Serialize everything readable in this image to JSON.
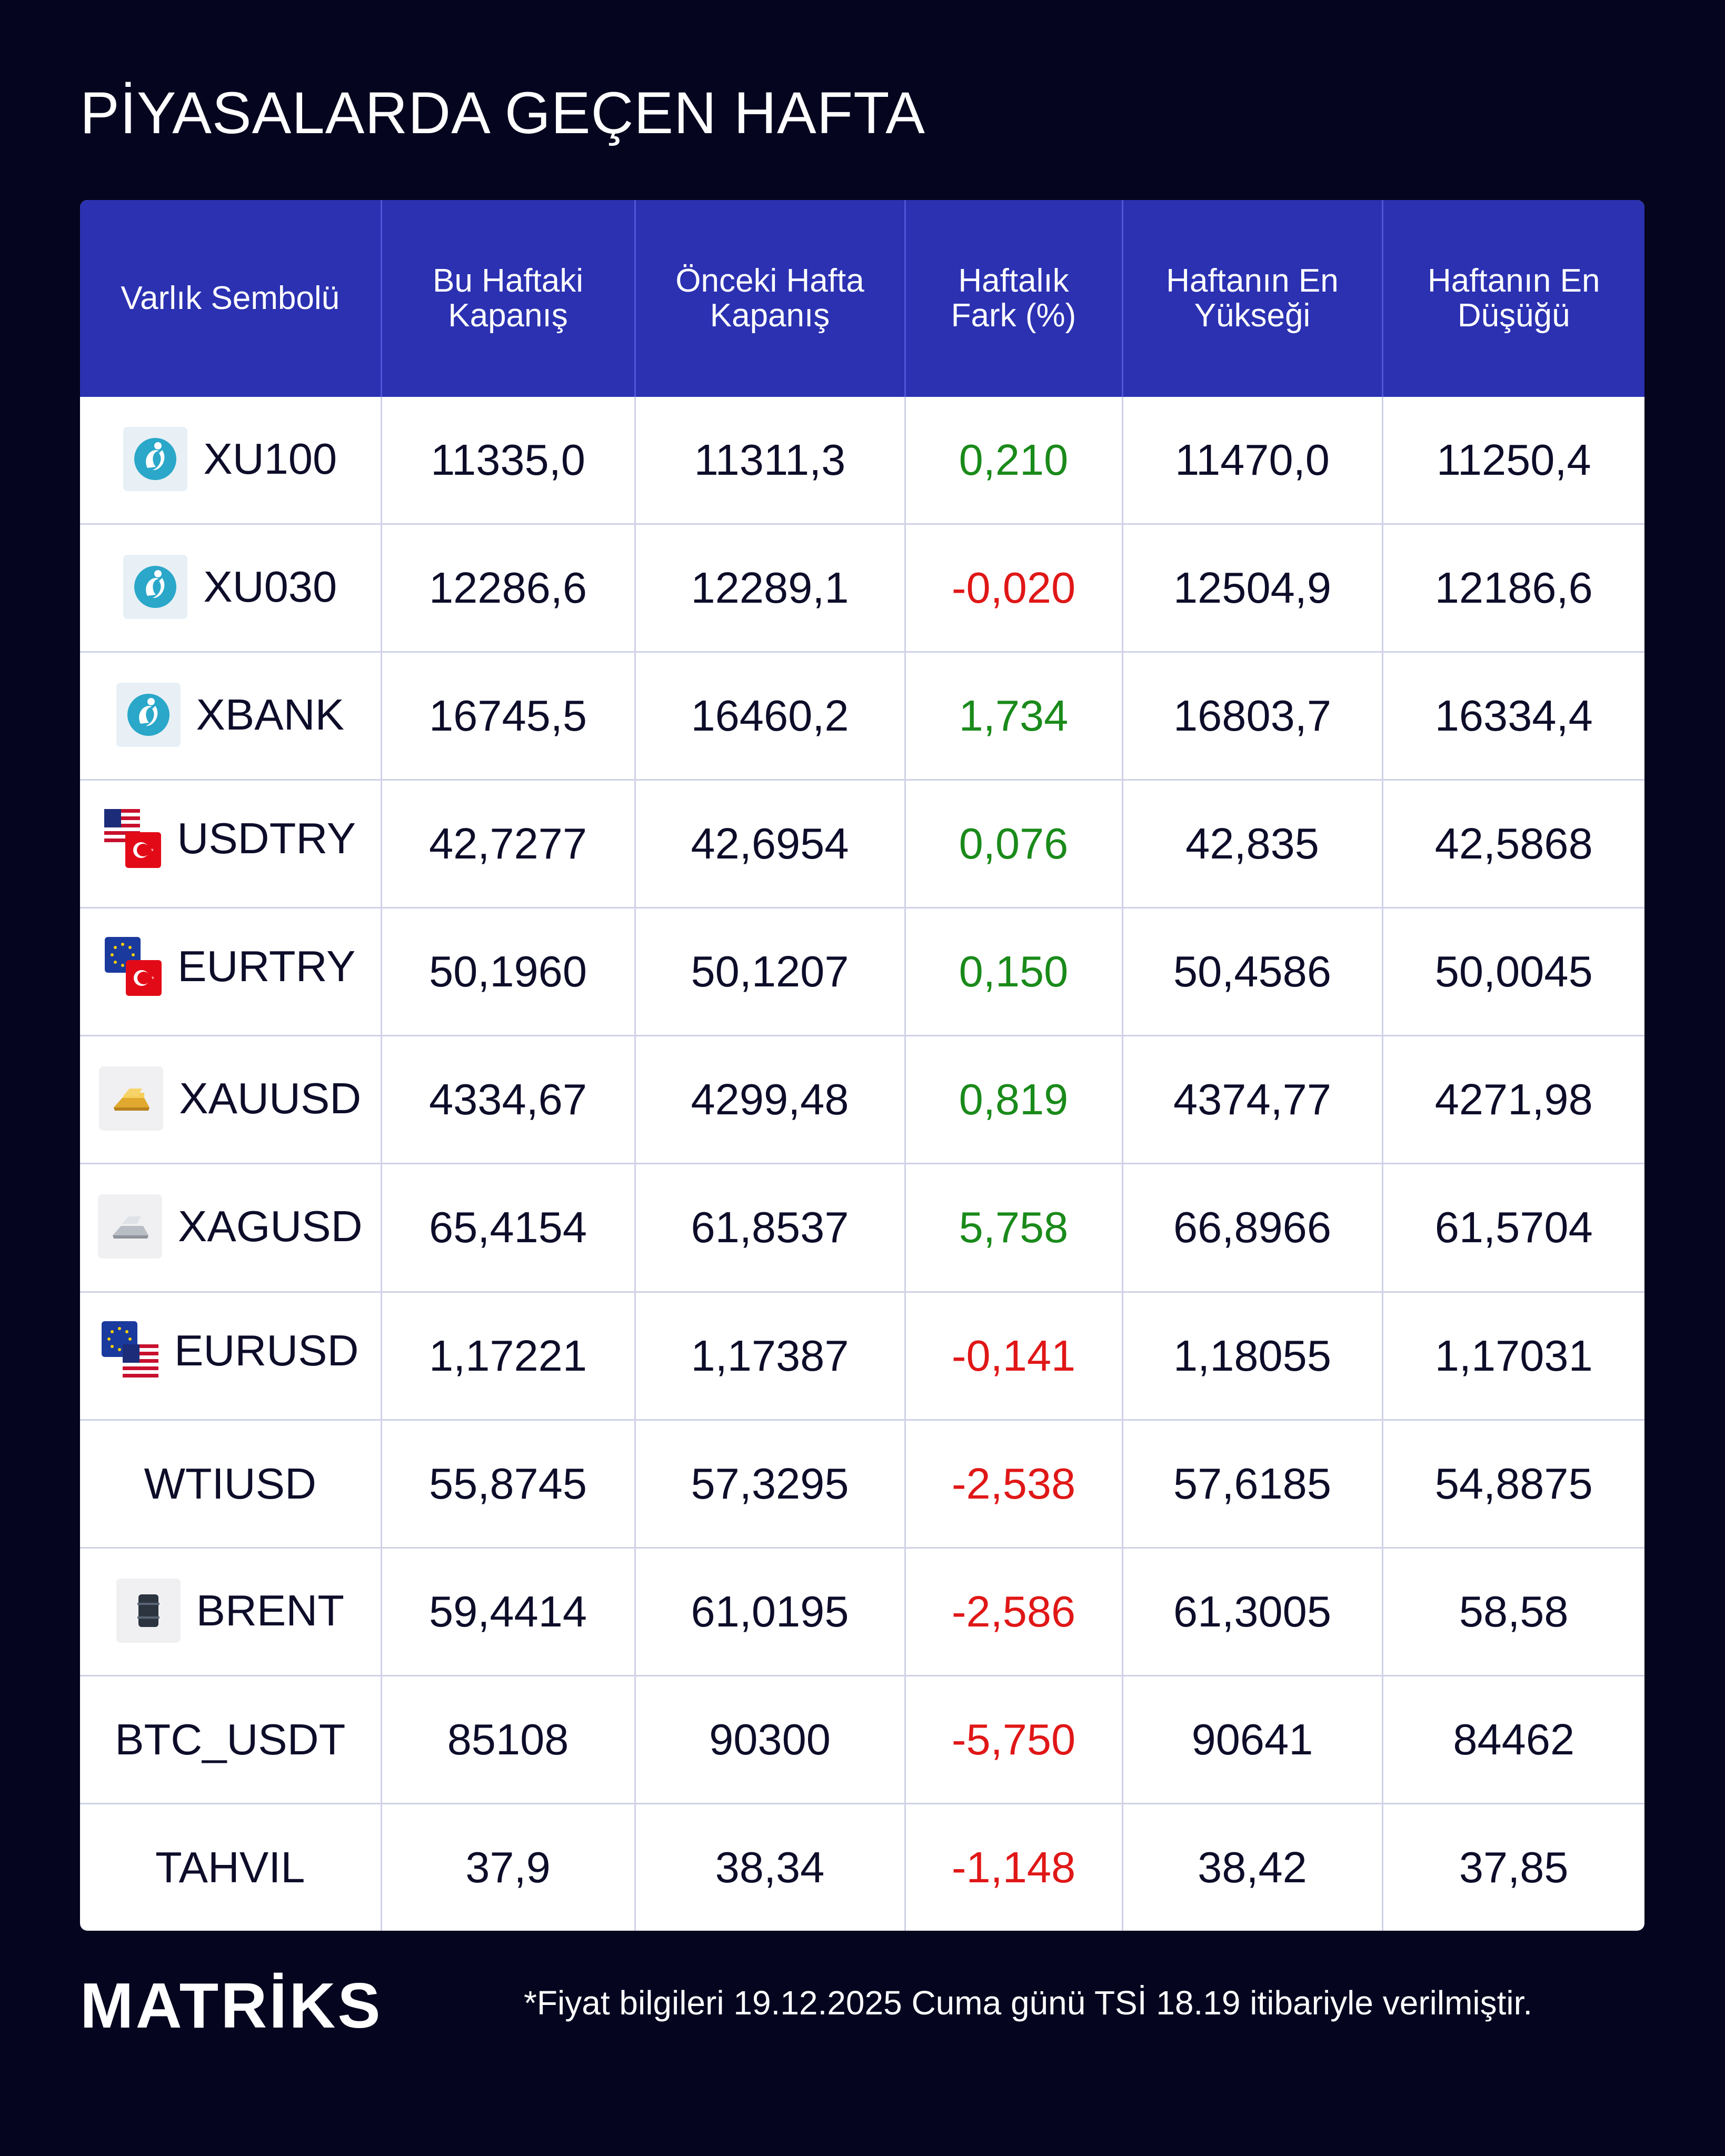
{
  "title": "PİYASALARDA GEÇEN HAFTA",
  "headers": {
    "symbol": "Varlık Sembolü",
    "this_week_1": "Bu Haftaki",
    "this_week_2": "Kapanış",
    "prev_week_1": "Önceki Hafta",
    "prev_week_2": "Kapanış",
    "change_1": "Haftalık",
    "change_2": "Fark (%)",
    "high_1": "Haftanın En",
    "high_2": "Yükseği",
    "low_1": "Haftanın En",
    "low_2": "Düşüğü"
  },
  "rows": [
    {
      "symbol": "XU100",
      "icon": "bist-icon",
      "close": "11335,0",
      "prev": "11311,3",
      "change": "0,210",
      "high": "11470,0",
      "low": "11250,4"
    },
    {
      "symbol": "XU030",
      "icon": "bist-icon",
      "close": "12286,6",
      "prev": "12289,1",
      "change": "-0,020",
      "high": "12504,9",
      "low": "12186,6"
    },
    {
      "symbol": "XBANK",
      "icon": "bist-icon",
      "close": "16745,5",
      "prev": "16460,2",
      "change": "1,734",
      "high": "16803,7",
      "low": "16334,4"
    },
    {
      "symbol": "USDTRY",
      "icon": "us-tr-flags-icon",
      "close": "42,7277",
      "prev": "42,6954",
      "change": "0,076",
      "high": "42,835",
      "low": "42,5868"
    },
    {
      "symbol": "EURTRY",
      "icon": "eu-tr-flags-icon",
      "close": "50,1960",
      "prev": "50,1207",
      "change": "0,150",
      "high": "50,4586",
      "low": "50,0045"
    },
    {
      "symbol": "XAUUSD",
      "icon": "gold-bar-icon",
      "close": "4334,67",
      "prev": "4299,48",
      "change": "0,819",
      "high": "4374,77",
      "low": "4271,98"
    },
    {
      "symbol": "XAGUSD",
      "icon": "silver-bar-icon",
      "close": "65,4154",
      "prev": "61,8537",
      "change": "5,758",
      "high": "66,8966",
      "low": "61,5704"
    },
    {
      "symbol": "EURUSD",
      "icon": "eu-us-flags-icon",
      "close": "1,17221",
      "prev": "1,17387",
      "change": "-0,141",
      "high": "1,18055",
      "low": "1,17031"
    },
    {
      "symbol": "WTIUSD",
      "icon": "",
      "close": "55,8745",
      "prev": "57,3295",
      "change": "-2,538",
      "high": "57,6185",
      "low": "54,8875"
    },
    {
      "symbol": "BRENT",
      "icon": "oil-barrel-icon",
      "close": "59,4414",
      "prev": "61,0195",
      "change": "-2,586",
      "high": "61,3005",
      "low": "58,58"
    },
    {
      "symbol": "BTC_USDT",
      "icon": "",
      "close": "85108",
      "prev": "90300",
      "change": "-5,750",
      "high": "90641",
      "low": "84462"
    },
    {
      "symbol": "TAHVIL",
      "icon": "",
      "close": "37,9",
      "prev": "38,34",
      "change": "-1,148",
      "high": "38,42",
      "low": "37,85"
    }
  ],
  "colors": {
    "background": "#05051f",
    "header": "#2b31b1",
    "positive": "#1a8a1a",
    "negative": "#e01717"
  },
  "footer": {
    "logo": "MATRİKS",
    "note": "*Fiyat bilgileri 19.12.2025 Cuma günü TSİ 18.19 itibariyle verilmiştir."
  }
}
